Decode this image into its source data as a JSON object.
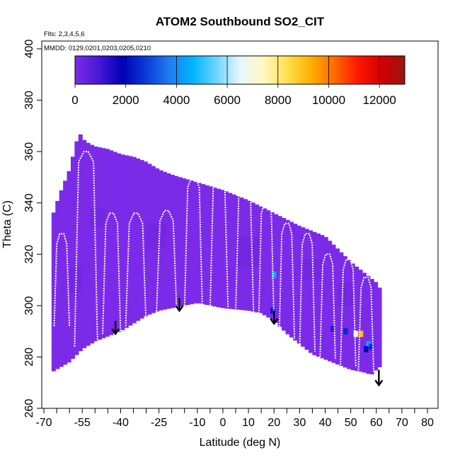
{
  "chart_data": {
    "type": "heatmap",
    "title": "ATOM2 Southbound SO2_CIT",
    "subtitle_flights": "Flts: 2,3,4,5,6",
    "subtitle_dates": "MMDD: 0129,0201,0203,0205,0210",
    "xlabel": "Latitude (deg N)",
    "ylabel": "Theta (C)",
    "xlim": [
      -70,
      80
    ],
    "ylim": [
      260,
      400
    ],
    "x_ticks": [
      -70,
      -55,
      -40,
      -25,
      -10,
      0,
      10,
      20,
      30,
      40,
      50,
      60,
      70,
      80
    ],
    "x_ticks_minor": [
      -65,
      -60,
      -50,
      -45,
      -35,
      -30,
      -20,
      -15,
      -5,
      5,
      15,
      25,
      35,
      45,
      55,
      65,
      75
    ],
    "y_ticks": [
      260,
      280,
      300,
      320,
      340,
      360,
      380,
      400
    ],
    "colorbar": {
      "range": [
        0,
        13000
      ],
      "ticks": [
        0,
        2000,
        4000,
        6000,
        8000,
        10000,
        12000
      ],
      "colors": [
        "#7b2be8",
        "#4a18d8",
        "#0000b8",
        "#0a3ad8",
        "#1e7cf0",
        "#00b4ff",
        "#6cd4ff",
        "#e8f6ff",
        "#fff8c0",
        "#ffe050",
        "#ffb000",
        "#ff6a00",
        "#ff1800",
        "#d40000",
        "#9a1414"
      ]
    },
    "field": {
      "background_value": 200,
      "lat_range": [
        -67,
        61
      ],
      "top_boundary": [
        [
          -67,
          334
        ],
        [
          -64,
          343
        ],
        [
          -60,
          353
        ],
        [
          -57,
          365
        ],
        [
          -55.5,
          367
        ],
        [
          -54,
          364
        ],
        [
          -50,
          362
        ],
        [
          -45,
          361
        ],
        [
          -40,
          359
        ],
        [
          -35,
          358
        ],
        [
          -30,
          356
        ],
        [
          -25,
          353
        ],
        [
          -20,
          351
        ],
        [
          -10,
          348
        ],
        [
          0,
          345
        ],
        [
          10,
          341
        ],
        [
          20,
          336
        ],
        [
          30,
          331
        ],
        [
          40,
          327
        ],
        [
          45,
          322
        ],
        [
          50,
          317
        ],
        [
          55,
          313
        ],
        [
          60,
          309
        ],
        [
          61,
          307
        ]
      ],
      "bottom_boundary": [
        [
          -67,
          274
        ],
        [
          -60,
          278
        ],
        [
          -55,
          283
        ],
        [
          -50,
          286
        ],
        [
          -45,
          288
        ],
        [
          -40,
          290
        ],
        [
          -35,
          293
        ],
        [
          -30,
          296
        ],
        [
          -25,
          298
        ],
        [
          -20,
          299
        ],
        [
          -10,
          301
        ],
        [
          0,
          299
        ],
        [
          10,
          298
        ],
        [
          15,
          297
        ],
        [
          20,
          294
        ],
        [
          25,
          289
        ],
        [
          30,
          285
        ],
        [
          35,
          281
        ],
        [
          40,
          279
        ],
        [
          45,
          277
        ],
        [
          50,
          275
        ],
        [
          55,
          274
        ],
        [
          58,
          273
        ],
        [
          61,
          276
        ]
      ],
      "hotspots": [
        {
          "lat": 53,
          "theta": 289,
          "value": 11000
        },
        {
          "lat": 54,
          "theta": 289,
          "value": 9000
        },
        {
          "lat": 52,
          "theta": 289,
          "value": 6500
        },
        {
          "lat": 48,
          "theta": 290,
          "value": 2500
        },
        {
          "lat": 57,
          "theta": 285,
          "value": 4500
        },
        {
          "lat": 58,
          "theta": 284,
          "value": 2500
        },
        {
          "lat": 56,
          "theta": 283,
          "value": 1800
        },
        {
          "lat": 19.5,
          "theta": 298,
          "value": 2200
        },
        {
          "lat": 20,
          "theta": 312,
          "value": 4500
        },
        {
          "lat": 43,
          "theta": 291,
          "value": 1200
        }
      ]
    },
    "flight_tracks": [
      {
        "lat_start": -66,
        "lat_end": -60,
        "theta_low": 292,
        "theta_high": 328
      },
      {
        "lat_start": -58,
        "lat_end": -49,
        "theta_low": 284,
        "theta_high": 360
      },
      {
        "lat_start": -47,
        "lat_end": -40,
        "theta_low": 289,
        "theta_high": 336
      },
      {
        "lat_start": -38,
        "lat_end": -30,
        "theta_low": 292,
        "theta_high": 336
      },
      {
        "lat_start": -26,
        "lat_end": -18,
        "theta_low": 296,
        "theta_high": 337
      },
      {
        "lat_start": -15,
        "lat_end": -8,
        "theta_low": 298,
        "theta_high": 350
      },
      {
        "lat_start": -5,
        "lat_end": 2,
        "theta_low": 299,
        "theta_high": 350
      },
      {
        "lat_start": 5,
        "lat_end": 12,
        "theta_low": 297,
        "theta_high": 347
      },
      {
        "lat_start": 14,
        "lat_end": 20,
        "theta_low": 294,
        "theta_high": 340
      },
      {
        "lat_start": 22,
        "lat_end": 28,
        "theta_low": 287,
        "theta_high": 332
      },
      {
        "lat_start": 30,
        "lat_end": 36,
        "theta_low": 282,
        "theta_high": 328
      },
      {
        "lat_start": 38,
        "lat_end": 44,
        "theta_low": 279,
        "theta_high": 320
      },
      {
        "lat_start": 46,
        "lat_end": 52,
        "theta_low": 276,
        "theta_high": 318
      },
      {
        "lat_start": 53,
        "lat_end": 59,
        "theta_low": 274,
        "theta_high": 311
      }
    ],
    "arrows": [
      {
        "lat": -42,
        "theta_from": 294,
        "theta_to": 289
      },
      {
        "lat": -17,
        "theta_from": 303,
        "theta_to": 298
      },
      {
        "lat": 20,
        "theta_from": 298,
        "theta_to": 293
      },
      {
        "lat": 61,
        "theta_from": 275,
        "theta_to": 269
      }
    ]
  },
  "colors": {
    "frame": "#000000",
    "track": "#ffffff",
    "field_base": "#7b2be8",
    "field_shade": "#6f24dc"
  }
}
